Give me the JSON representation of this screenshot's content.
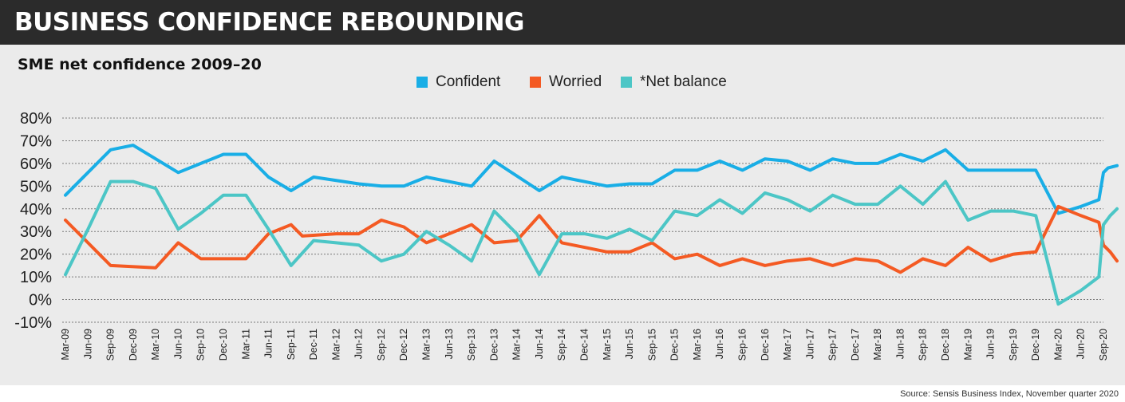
{
  "header": {
    "title": "BUSINESS CONFIDENCE REBOUNDING",
    "subtitle": "SME net confidence 2009–20",
    "source": "Source: Sensis Business Index, November quarter 2020"
  },
  "legend": [
    {
      "label": "Confident",
      "color": "#19aee6"
    },
    {
      "label": "Worried",
      "color": "#f45a23"
    },
    {
      "label": "*Net balance",
      "color": "#4cc6c6"
    }
  ],
  "chart_data": {
    "type": "line",
    "title": "SME net confidence 2009–20",
    "ylim": [
      -10,
      80
    ],
    "y_ticks": [
      "80%",
      "70%",
      "60%",
      "50%",
      "40%",
      "30%",
      "20%",
      "10%",
      "0%",
      "-10%"
    ],
    "y_tick_values": [
      80,
      70,
      60,
      50,
      40,
      30,
      20,
      10,
      0,
      -10
    ],
    "grid": "horizontal dashed",
    "legend_position": "top-center",
    "categories": [
      "Mar-09",
      "Jun-09",
      "Sep-09",
      "Dec-09",
      "Mar-10",
      "Jun-10",
      "Sep-10",
      "Dec-10",
      "Mar-11",
      "Jun-11",
      "Sep-11",
      "Dec-11",
      "Mar-12",
      "Jun-12",
      "Sep-12",
      "Dec-12",
      "Mar-13",
      "Jun-13",
      "Sep-13",
      "Dec-13",
      "Mar-14",
      "Jun-14",
      "Sep-14",
      "Dec-14",
      "Mar-15",
      "Jun-15",
      "Sep-15",
      "Dec-15",
      "Mar-16",
      "Jun-16",
      "Sep-16",
      "Dec-16",
      "Mar-17",
      "Jun-17",
      "Sep-17",
      "Dec-17",
      "Mar-18",
      "Jun-18",
      "Sep-18",
      "Dec-18",
      "Mar-19",
      "Jun-19",
      "Sep-19",
      "Dec-19",
      "Mar-20",
      "Jun-20",
      "Sep-20"
    ],
    "series": [
      {
        "name": "Confident",
        "color": "#19aee6",
        "points": [
          [
            0,
            46
          ],
          [
            2,
            66
          ],
          [
            3,
            68
          ],
          [
            4,
            62
          ],
          [
            5,
            56
          ],
          [
            6,
            60
          ],
          [
            7,
            64
          ],
          [
            8,
            64
          ],
          [
            9,
            54
          ],
          [
            10,
            48
          ],
          [
            11,
            54
          ],
          [
            13,
            51
          ],
          [
            14,
            50
          ],
          [
            15,
            50
          ],
          [
            16,
            54
          ],
          [
            18,
            50
          ],
          [
            19,
            61
          ],
          [
            21,
            48
          ],
          [
            22,
            54
          ],
          [
            24,
            50
          ],
          [
            25,
            51
          ],
          [
            26,
            51
          ],
          [
            27,
            57
          ],
          [
            28,
            57
          ],
          [
            29,
            61
          ],
          [
            30,
            57
          ],
          [
            31,
            62
          ],
          [
            32,
            61
          ],
          [
            33,
            57
          ],
          [
            34,
            62
          ],
          [
            35,
            60
          ],
          [
            36,
            60
          ],
          [
            37,
            64
          ],
          [
            38,
            61
          ],
          [
            39,
            66
          ],
          [
            40,
            57
          ],
          [
            42,
            57
          ],
          [
            43,
            57
          ],
          [
            44,
            38
          ],
          [
            45,
            41
          ],
          [
            45.8,
            44
          ],
          [
            46,
            56
          ],
          [
            46.2,
            58
          ],
          [
            46.6,
            59
          ]
        ]
      },
      {
        "name": "Worried",
        "color": "#f45a23",
        "points": [
          [
            0,
            35
          ],
          [
            1,
            25
          ],
          [
            2,
            15
          ],
          [
            4,
            14
          ],
          [
            5,
            25
          ],
          [
            6,
            18
          ],
          [
            7,
            18
          ],
          [
            8,
            18
          ],
          [
            9,
            29
          ],
          [
            10,
            33
          ],
          [
            10.5,
            28
          ],
          [
            12,
            29
          ],
          [
            13,
            29
          ],
          [
            14,
            35
          ],
          [
            15,
            32
          ],
          [
            16,
            25
          ],
          [
            17,
            29
          ],
          [
            18,
            33
          ],
          [
            19,
            25
          ],
          [
            20,
            26
          ],
          [
            21,
            37
          ],
          [
            22,
            25
          ],
          [
            23,
            23
          ],
          [
            24,
            21
          ],
          [
            25,
            21
          ],
          [
            26,
            25
          ],
          [
            27,
            18
          ],
          [
            28,
            20
          ],
          [
            29,
            15
          ],
          [
            30,
            18
          ],
          [
            31,
            15
          ],
          [
            32,
            17
          ],
          [
            33,
            18
          ],
          [
            34,
            15
          ],
          [
            35,
            18
          ],
          [
            36,
            17
          ],
          [
            37,
            12
          ],
          [
            38,
            18
          ],
          [
            39,
            15
          ],
          [
            40,
            23
          ],
          [
            41,
            17
          ],
          [
            42,
            20
          ],
          [
            43,
            21
          ],
          [
            44,
            41
          ],
          [
            45,
            37
          ],
          [
            45.8,
            34
          ],
          [
            46,
            24
          ],
          [
            46.3,
            21
          ],
          [
            46.6,
            17
          ]
        ]
      },
      {
        "name": "*Net balance",
        "color": "#4cc6c6",
        "points": [
          [
            0,
            11
          ],
          [
            1,
            31
          ],
          [
            2,
            52
          ],
          [
            3,
            52
          ],
          [
            4,
            49
          ],
          [
            5,
            31
          ],
          [
            6,
            38
          ],
          [
            7,
            46
          ],
          [
            8,
            46
          ],
          [
            9,
            31
          ],
          [
            10,
            15
          ],
          [
            11,
            26
          ],
          [
            12,
            25
          ],
          [
            13,
            24
          ],
          [
            14,
            17
          ],
          [
            15,
            20
          ],
          [
            16,
            30
          ],
          [
            17,
            24
          ],
          [
            18,
            17
          ],
          [
            19,
            39
          ],
          [
            20,
            29
          ],
          [
            21,
            11
          ],
          [
            22,
            29
          ],
          [
            23,
            29
          ],
          [
            24,
            27
          ],
          [
            25,
            31
          ],
          [
            26,
            26
          ],
          [
            27,
            39
          ],
          [
            28,
            37
          ],
          [
            29,
            44
          ],
          [
            30,
            38
          ],
          [
            31,
            47
          ],
          [
            32,
            44
          ],
          [
            33,
            39
          ],
          [
            34,
            46
          ],
          [
            35,
            42
          ],
          [
            36,
            42
          ],
          [
            37,
            50
          ],
          [
            38,
            42
          ],
          [
            39,
            52
          ],
          [
            40,
            35
          ],
          [
            41,
            39
          ],
          [
            42,
            39
          ],
          [
            43,
            37
          ],
          [
            44,
            -2
          ],
          [
            45,
            4
          ],
          [
            45.8,
            10
          ],
          [
            46,
            33
          ],
          [
            46.3,
            37
          ],
          [
            46.6,
            40
          ]
        ]
      }
    ]
  }
}
